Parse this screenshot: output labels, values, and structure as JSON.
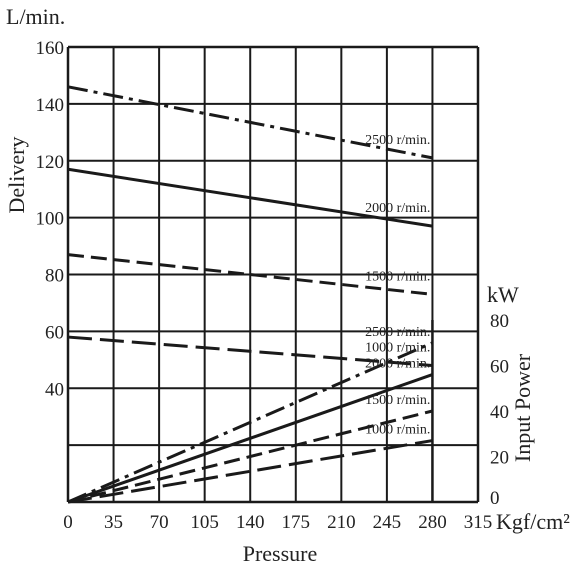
{
  "chart_data": {
    "type": "line",
    "xlabel": "Pressure",
    "x_unit": "Kgf/cm²",
    "x_ticks": [
      "0",
      "35",
      "70",
      "105",
      "140",
      "175",
      "210",
      "245",
      "280",
      "315"
    ],
    "xlim": [
      0,
      315
    ],
    "grid": true,
    "delivery": {
      "ylabel": "Delivery",
      "unit": "L/min.",
      "y_ticks": [
        "40",
        "60",
        "80",
        "100",
        "120",
        "140",
        "160"
      ],
      "ylim": [
        0,
        160
      ],
      "series": [
        {
          "name": "2500 r/min.",
          "dash": "dashdot",
          "x": [
            0,
            280
          ],
          "y": [
            146,
            121
          ]
        },
        {
          "name": "2000 r/min.",
          "dash": "solid",
          "x": [
            0,
            280
          ],
          "y": [
            117,
            97
          ]
        },
        {
          "name": "1500 r/min.",
          "dash": "dashed",
          "x": [
            0,
            280
          ],
          "y": [
            87,
            73
          ]
        },
        {
          "name": "1000 r/min.",
          "dash": "longdash",
          "x": [
            0,
            280
          ],
          "y": [
            58,
            48
          ]
        }
      ]
    },
    "input_power": {
      "ylabel": "Input Power",
      "unit": "kW",
      "y_ticks": [
        "0",
        "20",
        "40",
        "60",
        "80"
      ],
      "ylim": [
        0,
        80
      ],
      "series": [
        {
          "name": "2500 r/min.",
          "dash": "dashdot",
          "x": [
            0,
            280
          ],
          "y": [
            0,
            70
          ]
        },
        {
          "name": "2000 r/min.",
          "dash": "solid",
          "x": [
            0,
            280
          ],
          "y": [
            0,
            56
          ]
        },
        {
          "name": "1500 r/min.",
          "dash": "dashed",
          "x": [
            0,
            280
          ],
          "y": [
            0,
            40
          ]
        },
        {
          "name": "1000 r/min.",
          "dash": "longdash",
          "x": [
            0,
            280
          ],
          "y": [
            0,
            27
          ]
        }
      ]
    }
  }
}
